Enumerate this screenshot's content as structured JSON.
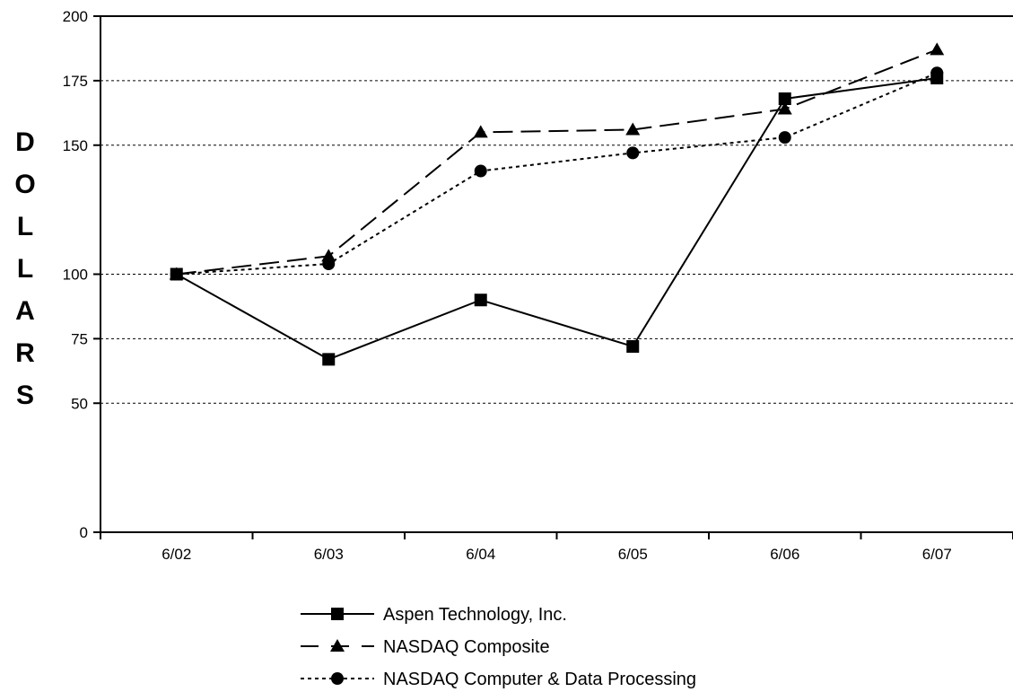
{
  "chart_data": {
    "type": "line",
    "title": "",
    "xlabel": "",
    "ylabel": "DOLLARS",
    "categories": [
      "6/02",
      "6/03",
      "6/04",
      "6/05",
      "6/06",
      "6/07"
    ],
    "ylim": [
      0,
      200
    ],
    "yticks": [
      0,
      50,
      75,
      100,
      150,
      175,
      200
    ],
    "grid": true,
    "legend_position": "bottom-center",
    "series": [
      {
        "name": "Aspen Technology, Inc.",
        "values": [
          100,
          67,
          90,
          72,
          168,
          176
        ],
        "marker": "square",
        "line_style": "solid",
        "color": "#000000"
      },
      {
        "name": "NASDAQ Composite",
        "values": [
          100,
          107,
          155,
          156,
          164,
          187
        ],
        "marker": "triangle",
        "line_style": "dashed",
        "color": "#000000"
      },
      {
        "name": "NASDAQ Computer & Data Processing",
        "values": [
          100,
          104,
          140,
          147,
          153,
          178
        ],
        "marker": "circle",
        "line_style": "dotted",
        "color": "#000000"
      }
    ]
  }
}
